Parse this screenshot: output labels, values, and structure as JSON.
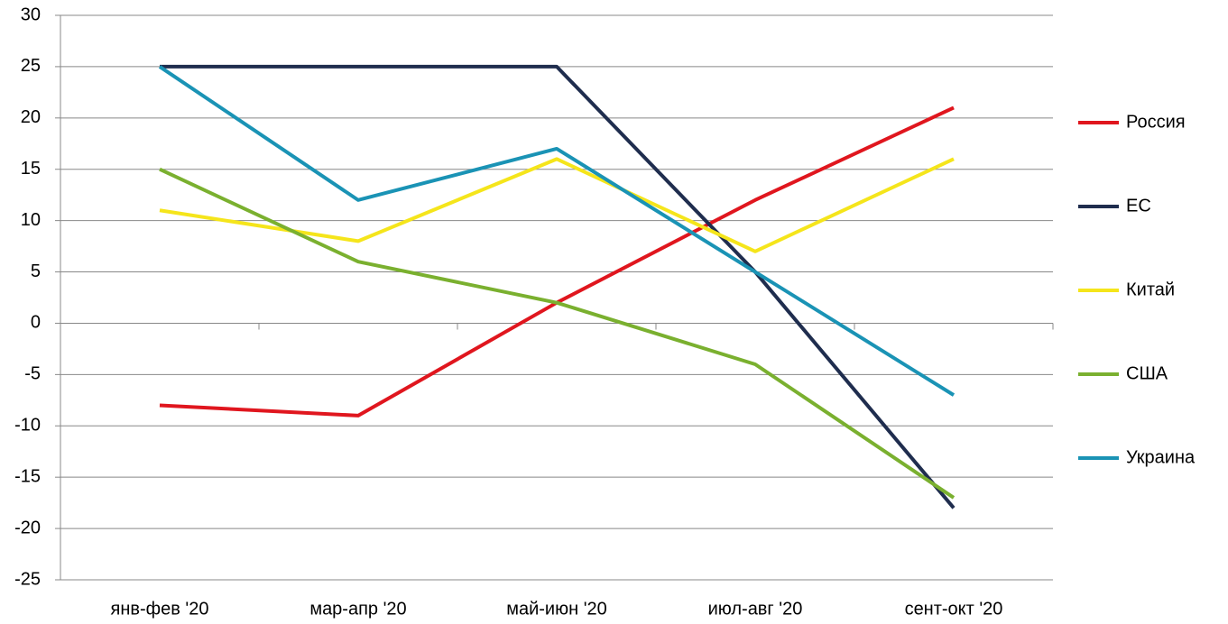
{
  "chart_data": {
    "type": "line",
    "categories": [
      "янв-фев '20",
      "мар-апр '20",
      "май-июн '20",
      "июл-авг '20",
      "сент-окт '20"
    ],
    "series": [
      {
        "name": "Россия",
        "color": "#e0161e",
        "values": [
          -8,
          -9,
          2,
          12,
          21
        ]
      },
      {
        "name": "ЕС",
        "color": "#1f2d4e",
        "values": [
          25,
          25,
          25,
          5,
          -18
        ]
      },
      {
        "name": "Китай",
        "color": "#f5e51b",
        "values": [
          11,
          8,
          16,
          7,
          16
        ]
      },
      {
        "name": "США",
        "color": "#7ab02f",
        "values": [
          15,
          6,
          2,
          -4,
          -17
        ]
      },
      {
        "name": "Украина",
        "color": "#1a93b5",
        "values": [
          25,
          12,
          17,
          5,
          -7
        ]
      }
    ],
    "ylim": [
      -25,
      30
    ],
    "yticks": [
      -25,
      -20,
      -15,
      -10,
      -5,
      0,
      5,
      10,
      15,
      20,
      25,
      30
    ],
    "grid": true,
    "legend": "right"
  }
}
